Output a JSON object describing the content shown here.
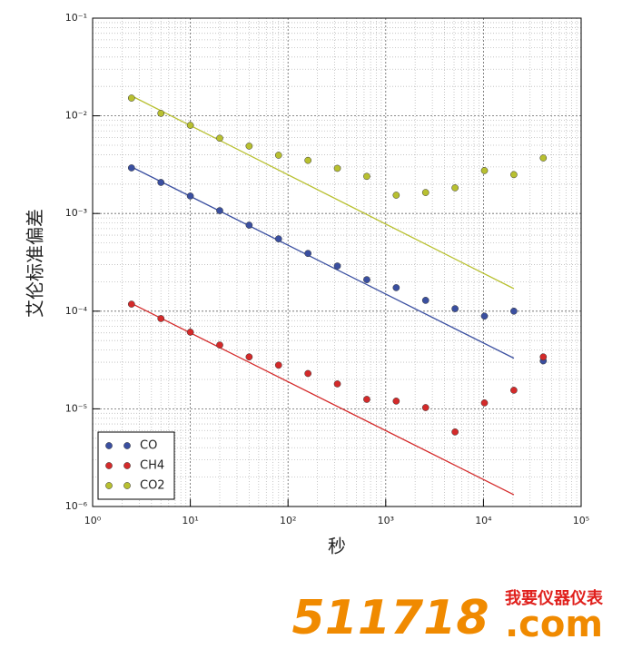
{
  "chart_data": {
    "type": "scatter",
    "xlabel": "秒",
    "ylabel": "艾伦标准偏差",
    "x": [
      2.5,
      5,
      10,
      20,
      40,
      80,
      160,
      320,
      640,
      1280,
      2560,
      5120,
      10240,
      20480,
      40960
    ],
    "series": [
      {
        "name": "CO",
        "color": "#3a4fa0",
        "values": [
          0.00293,
          0.00208,
          0.00151,
          0.00107,
          0.00076,
          0.00055,
          0.00039,
          0.00029,
          0.00021,
          0.000174,
          0.000129,
          0.000106,
          8.9e-05,
          0.0001,
          3.1e-05
        ],
        "fit": {
          "x": [
            2.5,
            20480
          ],
          "values": [
            0.003,
            3.3e-05
          ]
        }
      },
      {
        "name": "CH4",
        "color": "#d42a2a",
        "values": [
          0.000118,
          8.4e-05,
          6.1e-05,
          4.5e-05,
          3.4e-05,
          2.8e-05,
          2.3e-05,
          1.8e-05,
          1.25e-05,
          1.2e-05,
          1.03e-05,
          5.8e-06,
          1.15e-05,
          1.55e-05,
          3.4e-05
        ],
        "fit": {
          "x": [
            2.5,
            20480
          ],
          "values": [
            0.00012,
            1.32e-06
          ]
        }
      },
      {
        "name": "CO2",
        "color": "#b8c030",
        "values": [
          0.0152,
          0.0106,
          0.008,
          0.0059,
          0.0049,
          0.00395,
          0.0035,
          0.0029,
          0.0024,
          0.00154,
          0.00164,
          0.00183,
          0.00275,
          0.0025,
          0.0037
        ],
        "fit": {
          "x": [
            2.5,
            20480
          ],
          "values": [
            0.016,
            0.00017
          ]
        }
      }
    ],
    "xscale": "log",
    "yscale": "log",
    "grid": true,
    "legend": "lower left",
    "xlim": [
      1,
      100000
    ],
    "ylim": [
      1e-06,
      0.1
    ],
    "xticks": [
      {
        "value": 1,
        "label": "10⁰"
      },
      {
        "value": 10,
        "label": "10¹"
      },
      {
        "value": 100,
        "label": "10²"
      },
      {
        "value": 1000,
        "label": "10³"
      },
      {
        "value": 10000,
        "label": "10⁴"
      },
      {
        "value": 100000,
        "label": "10⁵"
      }
    ],
    "yticks": [
      {
        "value": 1e-06,
        "label": "10⁻⁶"
      },
      {
        "value": 1e-05,
        "label": "10⁻⁵"
      },
      {
        "value": 0.0001,
        "label": "10⁻⁴"
      },
      {
        "value": 0.001,
        "label": "10⁻³"
      },
      {
        "value": 0.01,
        "label": "10⁻²"
      },
      {
        "value": 0.1,
        "label": "10⁻¹"
      }
    ]
  },
  "watermark": {
    "number": "511718",
    "domain": ".com",
    "brand": "我要仪器仪表"
  }
}
